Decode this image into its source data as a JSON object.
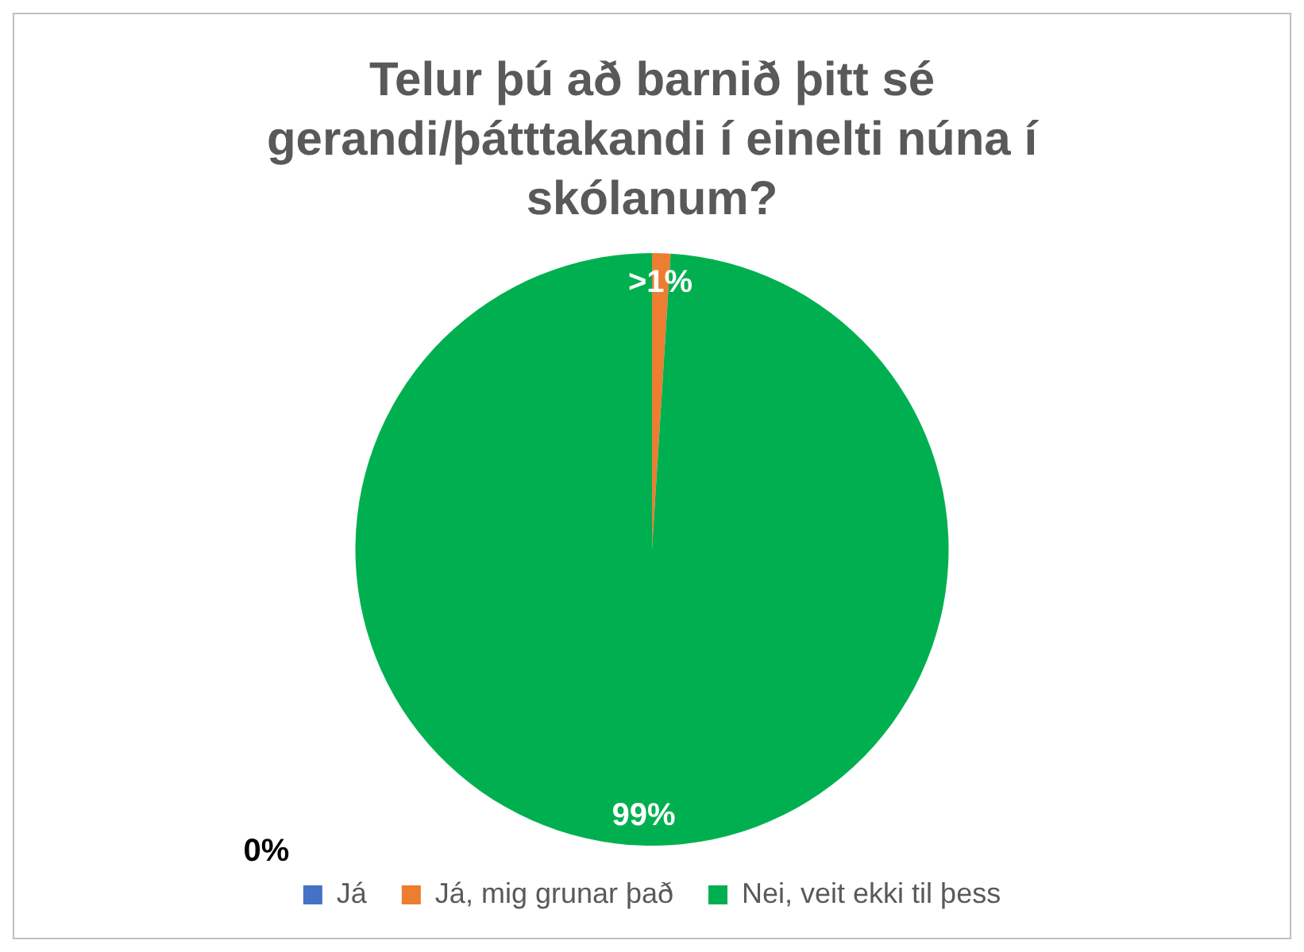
{
  "chart_data": {
    "type": "pie",
    "title": "Telur þú að barnið þitt sé gerandi/þátttakandi í einelti núna í skólanum?",
    "categories": [
      "Já",
      "Já, mig grunar það",
      "Nei, veit ekki til þess"
    ],
    "values": [
      0,
      1,
      99
    ],
    "colors": [
      "#4472c4",
      "#ed7d31",
      "#00b050"
    ],
    "value_labels": [
      "0%",
      ">1%",
      "99%"
    ],
    "legend": "bottom"
  }
}
